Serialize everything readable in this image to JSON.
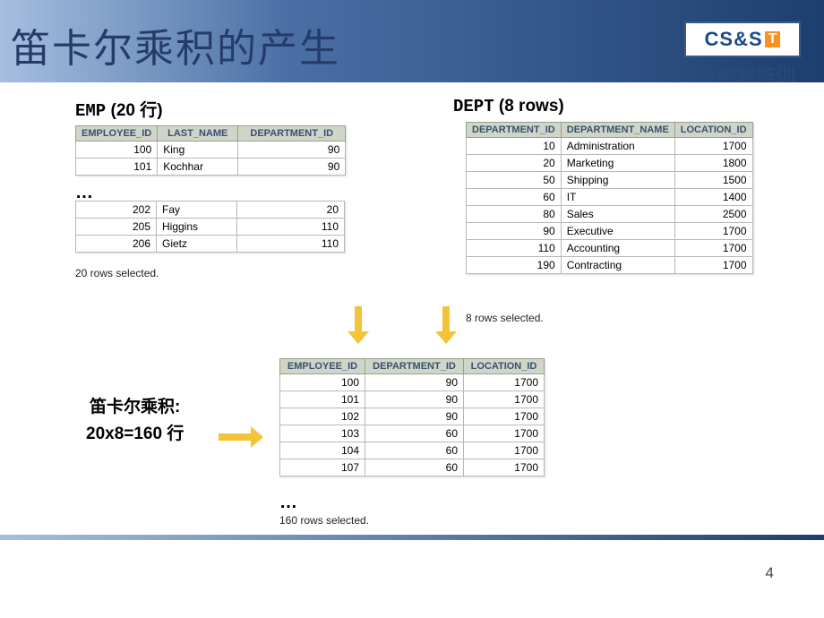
{
  "slide": {
    "title": "笛卡尔乘积的产生",
    "logo_main": "CS&S",
    "logo_badge": "T",
    "subtitle": "中软培训",
    "page_number": "4"
  },
  "emp": {
    "label_mono": "EMP",
    "label_rest": " (20 行)",
    "columns": [
      "EMPLOYEE_ID",
      "LAST_NAME",
      "DEPARTMENT_ID"
    ],
    "rows_top": [
      [
        "100",
        "King",
        "90"
      ],
      [
        "101",
        "Kochhar",
        "90"
      ]
    ],
    "rows_bottom": [
      [
        "202",
        "Fay",
        "20"
      ],
      [
        "205",
        "Higgins",
        "110"
      ],
      [
        "206",
        "Gietz",
        "110"
      ]
    ],
    "ellipsis": "…",
    "caption": "20 rows selected."
  },
  "dept": {
    "label_mono": "DEPT",
    "label_rest": " (8 rows)",
    "columns": [
      "DEPARTMENT_ID",
      "DEPARTMENT_NAME",
      "LOCATION_ID"
    ],
    "rows": [
      [
        "10",
        "Administration",
        "1700"
      ],
      [
        "20",
        "Marketing",
        "1800"
      ],
      [
        "50",
        "Shipping",
        "1500"
      ],
      [
        "60",
        "IT",
        "1400"
      ],
      [
        "80",
        "Sales",
        "2500"
      ],
      [
        "90",
        "Executive",
        "1700"
      ],
      [
        "110",
        "Accounting",
        "1700"
      ],
      [
        "190",
        "Contracting",
        "1700"
      ]
    ],
    "caption": "8 rows selected."
  },
  "cartesian": {
    "label_line1": "笛卡尔乘积:",
    "label_line2": "20x8=160 行",
    "columns": [
      "EMPLOYEE_ID",
      "DEPARTMENT_ID",
      "LOCATION_ID"
    ],
    "rows": [
      [
        "100",
        "90",
        "1700"
      ],
      [
        "101",
        "90",
        "1700"
      ],
      [
        "102",
        "90",
        "1700"
      ],
      [
        "103",
        "60",
        "1700"
      ],
      [
        "104",
        "60",
        "1700"
      ],
      [
        "107",
        "60",
        "1700"
      ]
    ],
    "ellipsis": "…",
    "caption": "160 rows selected."
  },
  "style": {
    "header_gradient_from": "#a6bfe0",
    "header_gradient_to": "#1d3e6e",
    "table_header_bg": "#cfd5c8",
    "table_header_fg": "#38506f",
    "arrow_color": "#f3c438"
  }
}
